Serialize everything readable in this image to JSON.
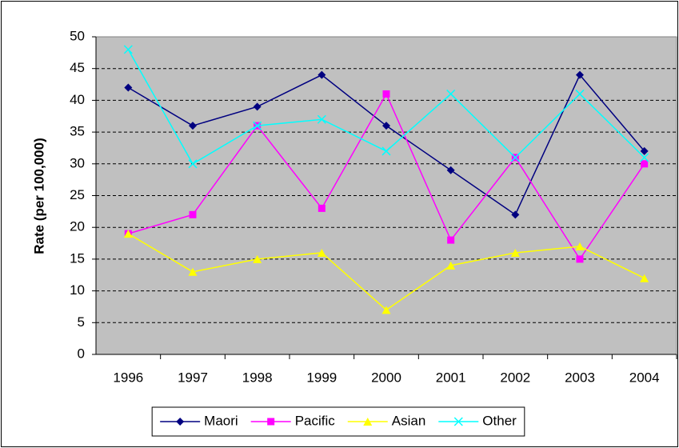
{
  "chart_data": {
    "type": "line",
    "y_label": "Rate (per 100,000)",
    "categories": [
      "1996",
      "1997",
      "1998",
      "1999",
      "2000",
      "2001",
      "2002",
      "2003",
      "2004"
    ],
    "series": [
      {
        "name": "Maori",
        "color": "#000080",
        "marker": "diamond",
        "values": [
          42,
          36,
          39,
          44,
          36,
          29,
          22,
          44,
          32
        ]
      },
      {
        "name": "Pacific",
        "color": "#ff00ff",
        "marker": "square",
        "values": [
          19,
          22,
          36,
          23,
          41,
          18,
          31,
          15,
          30
        ]
      },
      {
        "name": "Asian",
        "color": "#ffff00",
        "marker": "triangle",
        "values": [
          19,
          13,
          15,
          16,
          7,
          14,
          16,
          17,
          12
        ]
      },
      {
        "name": "Other",
        "color": "#00ffff",
        "marker": "x",
        "values": [
          48,
          30,
          36,
          37,
          32,
          41,
          31,
          41,
          31
        ]
      }
    ],
    "ylim": [
      0,
      50
    ],
    "yticks": [
      0,
      5,
      10,
      15,
      20,
      25,
      30,
      35,
      40,
      45,
      50
    ],
    "grid": true,
    "plot_background": "#c0c0c0",
    "legend": "bottom"
  }
}
